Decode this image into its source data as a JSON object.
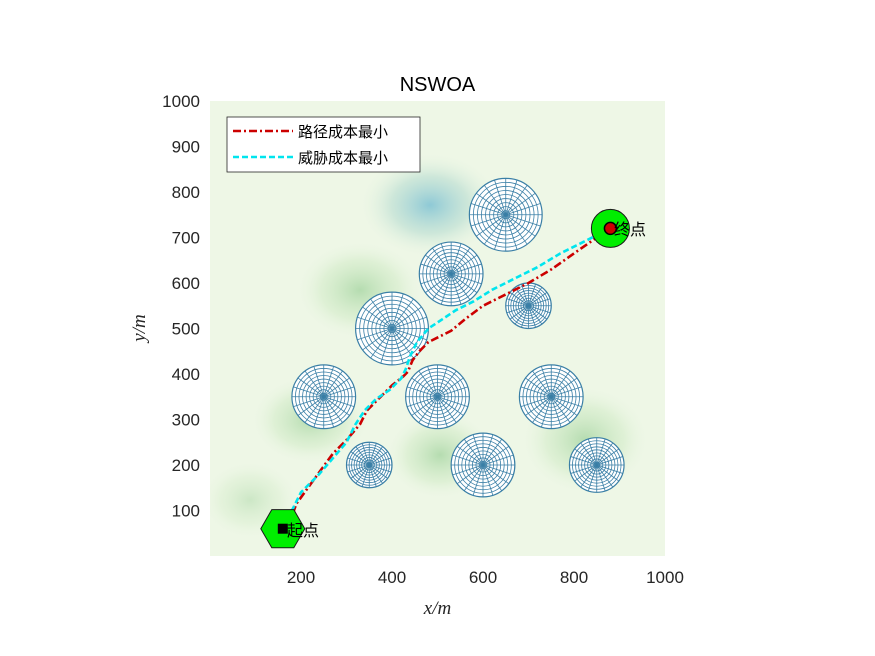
{
  "chart_data": {
    "type": "line",
    "title": "NSWOA",
    "xlabel": "x/m",
    "ylabel": "y/m",
    "xlim": [
      0,
      1000
    ],
    "ylim": [
      0,
      1000
    ],
    "xticks": [
      "200",
      "400",
      "600",
      "800",
      "1000"
    ],
    "yticks": [
      "100",
      "200",
      "300",
      "400",
      "500",
      "600",
      "700",
      "800",
      "900",
      "1000"
    ],
    "legend_position": "top-left",
    "series": [
      {
        "name": "路径成本最小",
        "color": "#cc0000",
        "style": "dash-dot",
        "x": [
          170,
          190,
          230,
          270,
          300,
          330,
          345,
          375,
          400,
          425,
          435,
          445,
          460,
          480,
          500,
          530,
          560,
          600,
          650,
          700,
          750,
          800,
          850,
          880
        ],
        "y": [
          60,
          115,
          170,
          225,
          255,
          290,
          320,
          350,
          375,
          395,
          405,
          430,
          450,
          470,
          480,
          495,
          520,
          550,
          575,
          600,
          630,
          665,
          700,
          720
        ]
      },
      {
        "name": "威胁成本最小",
        "color": "#00e5ee",
        "style": "dashed",
        "x": [
          170,
          180,
          200,
          240,
          270,
          300,
          320,
          340,
          365,
          395,
          410,
          420,
          430,
          440,
          455,
          480,
          510,
          540,
          580,
          620,
          670,
          720,
          770,
          820,
          860,
          880
        ],
        "y": [
          60,
          100,
          140,
          180,
          215,
          250,
          290,
          320,
          345,
          365,
          380,
          390,
          410,
          440,
          470,
          500,
          520,
          540,
          560,
          585,
          610,
          635,
          665,
          690,
          710,
          720
        ]
      }
    ],
    "threats": [
      {
        "cx": 650,
        "cy": 750,
        "r": 80
      },
      {
        "cx": 530,
        "cy": 620,
        "r": 70
      },
      {
        "cx": 700,
        "cy": 550,
        "r": 50
      },
      {
        "cx": 400,
        "cy": 500,
        "r": 80
      },
      {
        "cx": 250,
        "cy": 350,
        "r": 70
      },
      {
        "cx": 500,
        "cy": 350,
        "r": 70
      },
      {
        "cx": 750,
        "cy": 350,
        "r": 70
      },
      {
        "cx": 350,
        "cy": 200,
        "r": 50
      },
      {
        "cx": 600,
        "cy": 200,
        "r": 70
      },
      {
        "cx": 850,
        "cy": 200,
        "r": 60
      }
    ],
    "start": {
      "x": 160,
      "y": 60,
      "label": "起点"
    },
    "goal": {
      "x": 880,
      "y": 720,
      "label": "终点"
    }
  }
}
